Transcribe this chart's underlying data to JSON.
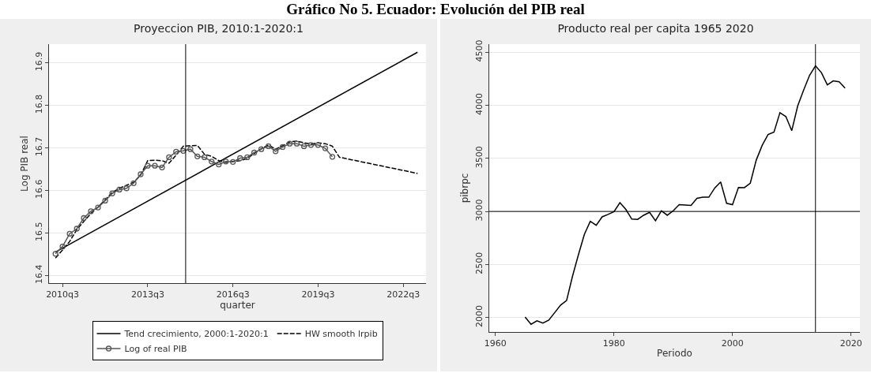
{
  "chart_data": [
    {
      "type": "line",
      "title": "Proyeccion PIB, 2010:1-2020:1",
      "xlabel": "quarter",
      "ylabel": "Log PIB real",
      "annotations": [
        "Gráfico No 5. Ecuador: Evolución del PIB real"
      ],
      "series": [
        {
          "name": "Tend crecimiento, 2000:1-2020:1",
          "color": "#000000",
          "line_style": "solid",
          "marker": "none",
          "x": [
            "2010-04",
            "2023-01"
          ],
          "values": [
            16.455,
            16.925
          ]
        },
        {
          "name": "HW smooth lrpib",
          "color": "#000000",
          "line_style": "dashed",
          "marker": "none",
          "x": [
            "2010-04",
            "2010-07",
            "2010-10",
            "2011-01",
            "2011-04",
            "2011-07",
            "2011-10",
            "2012-01",
            "2012-04",
            "2012-07",
            "2012-10",
            "2013-01",
            "2013-04",
            "2013-07",
            "2013-10",
            "2014-01",
            "2014-04",
            "2014-07",
            "2014-10",
            "2015-01",
            "2015-04",
            "2015-07",
            "2015-10",
            "2016-01",
            "2016-04",
            "2016-07",
            "2016-10",
            "2017-01",
            "2017-04",
            "2017-07",
            "2017-10",
            "2018-01",
            "2018-04",
            "2018-07",
            "2018-10",
            "2019-01",
            "2019-04",
            "2019-07",
            "2019-10",
            "2020-01",
            "2020-04",
            "2023-01"
          ],
          "values": [
            16.441,
            16.46,
            16.48,
            16.508,
            16.527,
            16.546,
            16.561,
            16.578,
            16.595,
            16.605,
            16.612,
            16.619,
            16.636,
            16.67,
            16.671,
            16.67,
            16.664,
            16.683,
            16.704,
            16.705,
            16.706,
            16.685,
            16.68,
            16.67,
            16.666,
            16.668,
            16.67,
            16.675,
            16.687,
            16.698,
            16.707,
            16.697,
            16.705,
            16.714,
            16.716,
            16.712,
            16.709,
            16.712,
            16.71,
            16.704,
            16.678,
            16.64
          ]
        },
        {
          "name": "Log of real PIB",
          "color": "#555555",
          "line_style": "solid",
          "marker": "circle",
          "x": [
            "2010-04",
            "2010-07",
            "2010-10",
            "2011-01",
            "2011-04",
            "2011-07",
            "2011-10",
            "2012-01",
            "2012-04",
            "2012-07",
            "2012-10",
            "2013-01",
            "2013-04",
            "2013-07",
            "2013-10",
            "2014-01",
            "2014-04",
            "2014-07",
            "2014-10",
            "2015-01",
            "2015-04",
            "2015-07",
            "2015-10",
            "2016-01",
            "2016-04",
            "2016-07",
            "2016-10",
            "2017-01",
            "2017-04",
            "2017-07",
            "2017-10",
            "2018-01",
            "2018-04",
            "2018-07",
            "2018-10",
            "2019-01",
            "2019-04",
            "2019-07",
            "2019-10",
            "2020-01"
          ],
          "values": [
            16.451,
            16.468,
            16.498,
            16.51,
            16.535,
            16.551,
            16.56,
            16.576,
            16.593,
            16.602,
            16.605,
            16.617,
            16.638,
            16.658,
            16.658,
            16.654,
            16.678,
            16.691,
            16.693,
            16.697,
            16.68,
            16.678,
            16.668,
            16.661,
            16.668,
            16.667,
            16.676,
            16.678,
            16.689,
            16.697,
            16.704,
            16.692,
            16.702,
            16.71,
            16.71,
            16.704,
            16.707,
            16.707,
            16.699,
            16.679
          ]
        }
      ],
      "xlim": [
        "2010-01-08",
        "2023-04-20"
      ],
      "xticks": [
        {
          "value": "2010-07",
          "label": "2010q3"
        },
        {
          "value": "2013-07",
          "label": "2013q3"
        },
        {
          "value": "2016-07",
          "label": "2016q3"
        },
        {
          "value": "2019-07",
          "label": "2019q3"
        },
        {
          "value": "2022-07",
          "label": "2022q3"
        }
      ],
      "ylim": [
        16.382,
        16.944
      ],
      "yticks": [
        16.4,
        16.5,
        16.6,
        16.7,
        16.8,
        16.9
      ],
      "ref_lines": [
        {
          "axis": "x",
          "value": "2014-11",
          "color": "#000000"
        }
      ],
      "grid": "y",
      "legend": "bottom"
    },
    {
      "type": "line",
      "title": "Producto real per capita 1965 2020",
      "xlabel": "Periodo",
      "ylabel": "pibrpc",
      "series": [
        {
          "color": "#000000",
          "line_style": "solid",
          "marker": "none",
          "x": [
            1965,
            1966,
            1967,
            1968,
            1969,
            1970,
            1971,
            1972,
            1973,
            1974,
            1975,
            1976,
            1977,
            1978,
            1979,
            1980,
            1981,
            1982,
            1983,
            1984,
            1985,
            1986,
            1987,
            1988,
            1989,
            1990,
            1991,
            1992,
            1993,
            1994,
            1995,
            1996,
            1997,
            1998,
            1999,
            2000,
            2001,
            2002,
            2003,
            2004,
            2005,
            2006,
            2007,
            2008,
            2009,
            2010,
            2011,
            2012,
            2013,
            2014,
            2015,
            2016,
            2017,
            2018,
            2019
          ],
          "values": [
            2005,
            1937,
            1969,
            1948,
            1976,
            2047,
            2118,
            2160,
            2390,
            2592,
            2784,
            2907,
            2870,
            2949,
            2972,
            2998,
            3082,
            3019,
            2928,
            2925,
            2964,
            2991,
            2912,
            3006,
            2964,
            3006,
            3064,
            3061,
            3056,
            3124,
            3134,
            3134,
            3221,
            3278,
            3077,
            3064,
            3226,
            3224,
            3266,
            3483,
            3622,
            3724,
            3748,
            3931,
            3894,
            3761,
            3994,
            4143,
            4282,
            4371,
            4308,
            4193,
            4230,
            4222,
            4162
          ]
        }
      ],
      "xlim": [
        1958.95,
        2021.5
      ],
      "xticks": [
        1960,
        1980,
        2000,
        2020
      ],
      "ylim": [
        1864,
        4576
      ],
      "yticks": [
        2000,
        2500,
        3000,
        3500,
        4000,
        4500
      ],
      "ref_lines": [
        {
          "axis": "y",
          "value": 3000,
          "color": "#000000"
        },
        {
          "axis": "x",
          "value": 2014,
          "color": "#000000"
        }
      ],
      "grid": "y",
      "legend": false
    }
  ]
}
